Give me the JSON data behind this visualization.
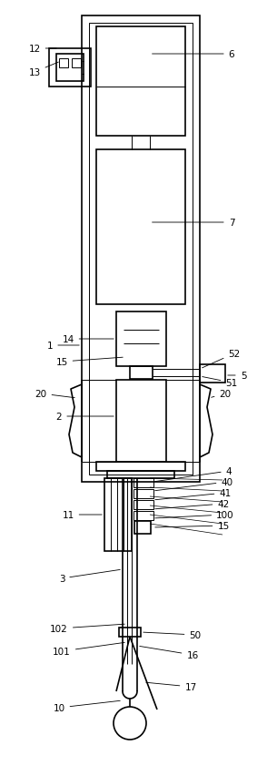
{
  "fig_width": 2.94,
  "fig_height": 8.53,
  "dpi": 100,
  "bg_color": "#ffffff",
  "lc": "#000000",
  "lw": 1.2,
  "tlw": 0.7
}
